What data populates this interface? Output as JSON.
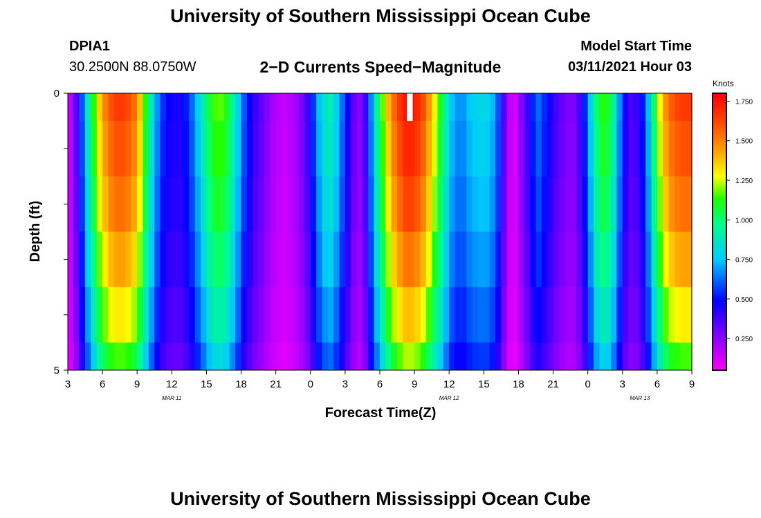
{
  "header": {
    "title": "University of Southern Mississippi Ocean Cube",
    "station_id": "DPIA1",
    "station_coords": "30.2500N 88.0750W",
    "chart_title": "2−D Currents Speed−Magnitude",
    "model_label": "Model Start Time",
    "model_time": "03/11/2021 Hour 03"
  },
  "footer": {
    "title": "University of Southern Mississippi Ocean Cube"
  },
  "chart_data": {
    "type": "heatmap",
    "title": "2−D Currents Speed−Magnitude",
    "xlabel": "Forecast Time(Z)",
    "ylabel": "Depth (ft)",
    "x_tick_labels": [
      "3",
      "6",
      "9",
      "12",
      "15",
      "18",
      "21",
      "0",
      "3",
      "6",
      "9",
      "12",
      "15",
      "18",
      "21",
      "0",
      "3",
      "6",
      "9"
    ],
    "x_range_hours_from_start": [
      0,
      54
    ],
    "date_labels": [
      {
        "text": "MAR 11",
        "hour": 9
      },
      {
        "text": "MAR 12",
        "hour": 33
      },
      {
        "text": "MAR 13",
        "hour": 49.5
      }
    ],
    "y_tick_labels": [
      "0",
      "5"
    ],
    "y_range": [
      0,
      5
    ],
    "y_inverted": true,
    "colorbar": {
      "label": "Knots",
      "min": 0.05,
      "max": 1.8,
      "tick_labels": [
        "0.250",
        "0.500",
        "0.750",
        "1.000",
        "1.250",
        "1.500",
        "1.750"
      ],
      "tick_values": [
        0.25,
        0.5,
        0.75,
        1.0,
        1.25,
        1.5,
        1.75
      ]
    },
    "missing_value_note": "blank cell near surface at approx. hour 29.5",
    "speed_profile_knots": [
      [
        0.0,
        0.1
      ],
      [
        0.5,
        0.25
      ],
      [
        1.0,
        0.45
      ],
      [
        1.5,
        0.75
      ],
      [
        2.0,
        1.0
      ],
      [
        2.5,
        1.25
      ],
      [
        3.0,
        1.45
      ],
      [
        4.0,
        1.65
      ],
      [
        5.0,
        1.65
      ],
      [
        6.0,
        1.5
      ],
      [
        6.8,
        1.1
      ],
      [
        7.5,
        0.75
      ],
      [
        8.2,
        0.55
      ],
      [
        9.0,
        0.45
      ],
      [
        9.7,
        0.45
      ],
      [
        10.5,
        0.55
      ],
      [
        11.4,
        0.8
      ],
      [
        12.2,
        1.05
      ],
      [
        13.0,
        1.2
      ],
      [
        13.8,
        1.1
      ],
      [
        14.7,
        0.8
      ],
      [
        15.4,
        0.55
      ],
      [
        16.2,
        0.4
      ],
      [
        17.0,
        0.3
      ],
      [
        17.8,
        0.2
      ],
      [
        18.8,
        0.15
      ],
      [
        19.6,
        0.2
      ],
      [
        20.4,
        0.3
      ],
      [
        21.0,
        0.45
      ],
      [
        21.6,
        0.7
      ],
      [
        22.2,
        0.85
      ],
      [
        22.8,
        0.9
      ],
      [
        23.4,
        0.75
      ],
      [
        24.0,
        0.55
      ],
      [
        24.6,
        0.35
      ],
      [
        25.2,
        0.25
      ],
      [
        25.8,
        0.4
      ],
      [
        26.4,
        0.75
      ],
      [
        27.0,
        1.05
      ],
      [
        27.6,
        1.35
      ],
      [
        28.4,
        1.6
      ],
      [
        29.2,
        1.75
      ],
      [
        30.0,
        1.75
      ],
      [
        30.8,
        1.6
      ],
      [
        31.6,
        1.35
      ],
      [
        32.4,
        1.05
      ],
      [
        33.2,
        0.75
      ],
      [
        34.0,
        0.65
      ],
      [
        34.8,
        0.75
      ],
      [
        35.5,
        0.8
      ],
      [
        36.2,
        0.8
      ],
      [
        37.0,
        0.7
      ],
      [
        37.6,
        0.45
      ],
      [
        38.0,
        0.2
      ],
      [
        38.6,
        0.1
      ],
      [
        39.2,
        0.25
      ],
      [
        40.0,
        0.45
      ],
      [
        40.6,
        0.65
      ],
      [
        41.2,
        0.55
      ],
      [
        41.8,
        0.45
      ],
      [
        42.4,
        0.35
      ],
      [
        43.0,
        0.3
      ],
      [
        43.6,
        0.25
      ],
      [
        44.2,
        0.35
      ],
      [
        44.8,
        0.55
      ],
      [
        45.4,
        0.85
      ],
      [
        46.0,
        1.1
      ],
      [
        46.6,
        1.15
      ],
      [
        47.2,
        0.95
      ],
      [
        47.8,
        0.65
      ],
      [
        48.4,
        0.4
      ],
      [
        49.0,
        0.35
      ],
      [
        49.6,
        0.45
      ],
      [
        50.2,
        0.7
      ],
      [
        50.8,
        1.05
      ],
      [
        51.4,
        1.35
      ],
      [
        52.0,
        1.55
      ],
      [
        53.0,
        1.65
      ],
      [
        54.0,
        1.65
      ]
    ]
  }
}
